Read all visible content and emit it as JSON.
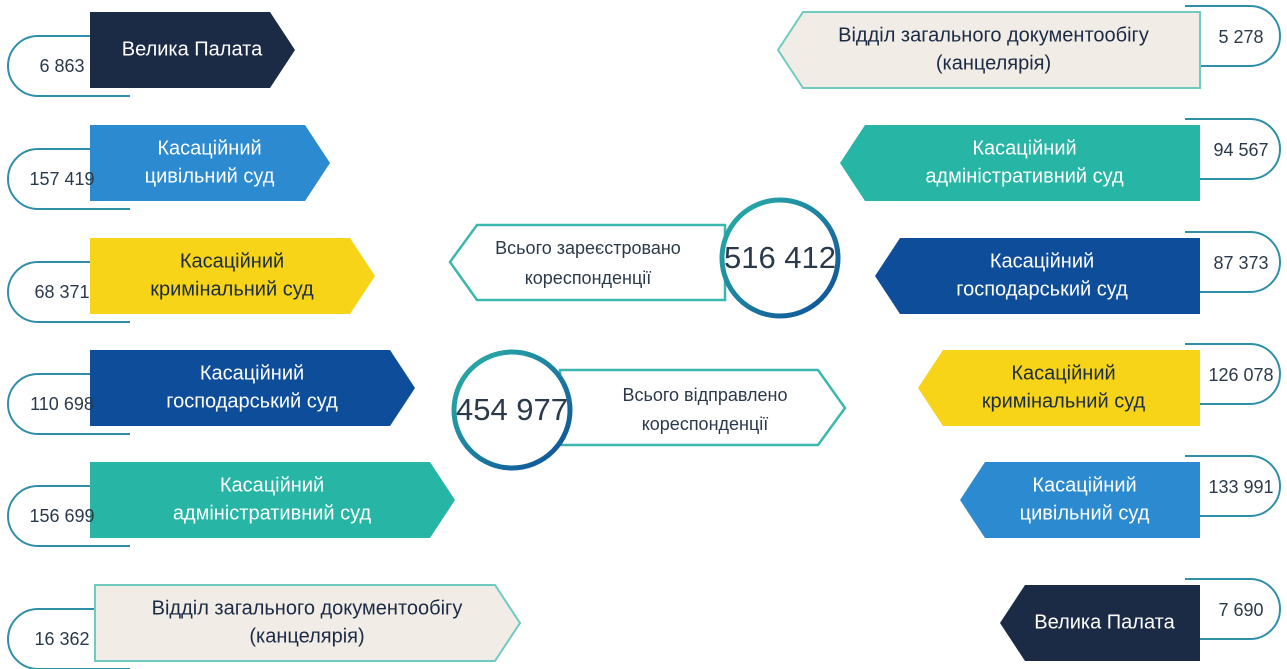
{
  "left": [
    {
      "label": [
        "Велика Палата"
      ],
      "value": "6 863"
    },
    {
      "label": [
        "Касаційний",
        "цивільний суд"
      ],
      "value": "157 419"
    },
    {
      "label": [
        "Касаційний",
        "кримінальний суд"
      ],
      "value": "68 371"
    },
    {
      "label": [
        "Касаційний",
        "господарський суд"
      ],
      "value": "110 698"
    },
    {
      "label": [
        "Касаційний",
        "адміністративний суд"
      ],
      "value": "156 699"
    },
    {
      "label": [
        "Відділ загального документообігу",
        "(канцелярія)"
      ],
      "value": "16 362"
    }
  ],
  "right": [
    {
      "label": [
        "Відділ загального документообігу",
        "(канцелярія)"
      ],
      "value": "5 278"
    },
    {
      "label": [
        "Касаційний",
        "адміністративний суд"
      ],
      "value": "94 567"
    },
    {
      "label": [
        "Касаційний",
        "господарський суд"
      ],
      "value": "87 373"
    },
    {
      "label": [
        "Касаційний",
        "кримінальний суд"
      ],
      "value": "126 078"
    },
    {
      "label": [
        "Касаційний",
        "цивільний суд"
      ],
      "value": "133 991"
    },
    {
      "label": [
        "Велика Палата"
      ],
      "value": "7 690"
    }
  ],
  "received": {
    "label": [
      "Всього зареєстровано",
      "кореспонденції"
    ],
    "value": "516 412"
  },
  "sent": {
    "label": [
      "Всього відправлено",
      "кореспонденції"
    ],
    "value": "454 977"
  }
}
